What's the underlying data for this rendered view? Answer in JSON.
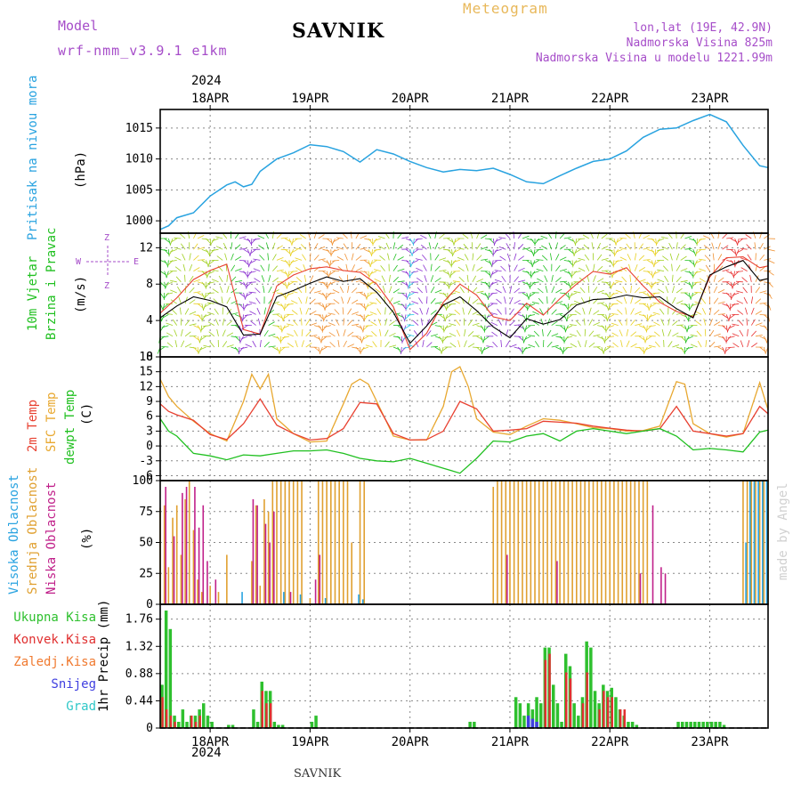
{
  "header": {
    "model_label": "Model",
    "model_name": "wrf-nmm_v3.9.1 e1km",
    "station": "SAVNIK",
    "meteogram_label": "Meteogram",
    "lonlat": "lon,lat (19E, 42.9N)",
    "elevation": "Nadmorska Visina 825m",
    "model_elevation": "Nadmorska Visina u modelu 1221.99m",
    "footer_station": "SAVNIK",
    "watermark": "made by Angel"
  },
  "time_axis": {
    "top_year": "2024",
    "bottom_year": "2024",
    "day_labels": [
      "18APR",
      "19APR",
      "20APR",
      "21APR",
      "22APR",
      "23APR"
    ],
    "day_start_hours": [
      12,
      36,
      60,
      84,
      108,
      132
    ],
    "hours_total": 146
  },
  "colors": {
    "pressure": "#29a3e0",
    "temp2m": "#e84030",
    "sfc": "#e8a830",
    "dewpt": "#20c020",
    "wind_black": "#000000",
    "wind_gust": "#e84030",
    "cloud_high": "#29a3e0",
    "cloud_mid": "#e0a030",
    "cloud_low": "#c0208a",
    "precip_total": "#2ec02e",
    "precip_conv": "#e03030",
    "precip_strat": "#f07a30",
    "snow": "#4040e0",
    "hail": "#30c8c8"
  },
  "chart_data": [
    {
      "type": "line",
      "panel": "pressure",
      "ylabel": [
        "Pritisak na nivou mora",
        "(hPa)"
      ],
      "ylim": [
        998,
        1018
      ],
      "yticks": [
        1000,
        1005,
        1010,
        1015
      ],
      "series": [
        {
          "name": "Pritisak na nivou mora",
          "x": [
            0,
            2,
            4,
            8,
            12,
            16,
            18,
            20,
            22,
            24,
            28,
            32,
            36,
            40,
            44,
            48,
            52,
            56,
            60,
            64,
            68,
            72,
            76,
            80,
            84,
            88,
            92,
            96,
            100,
            104,
            108,
            112,
            116,
            120,
            124,
            128,
            132,
            136,
            140,
            144,
            146
          ],
          "values": [
            998.6,
            999.2,
            1000.5,
            1001.3,
            1004.0,
            1005.8,
            1006.3,
            1005.5,
            1005.9,
            1008.0,
            1010.0,
            1011.0,
            1012.3,
            1012.0,
            1011.2,
            1009.5,
            1011.5,
            1010.8,
            1009.6,
            1008.6,
            1007.9,
            1008.3,
            1008.1,
            1008.5,
            1007.5,
            1006.3,
            1006.0,
            1007.3,
            1008.5,
            1009.6,
            1010.0,
            1011.3,
            1013.5,
            1014.8,
            1015.0,
            1016.2,
            1017.2,
            1016.0,
            1012.2,
            1008.9,
            1008.6
          ]
        }
      ]
    },
    {
      "type": "line",
      "panel": "wind",
      "ylabel": [
        "10m Vjetar",
        "Brzina i Pravac",
        "(m/s)"
      ],
      "compass": {
        "n": "Z",
        "w": "W",
        "e": "E",
        "s": "Z"
      },
      "ylim": [
        0,
        13.6
      ],
      "yticks": [
        0,
        4,
        8,
        12
      ],
      "series": [
        {
          "name": "Brzina",
          "x": [
            0,
            4,
            8,
            12,
            16,
            20,
            24,
            28,
            32,
            36,
            40,
            44,
            48,
            52,
            56,
            60,
            64,
            68,
            72,
            76,
            80,
            84,
            88,
            92,
            96,
            100,
            104,
            108,
            112,
            116,
            120,
            124,
            128,
            132,
            136,
            140,
            144,
            146
          ],
          "values": [
            4.3,
            5.6,
            6.6,
            6.2,
            5.5,
            2.4,
            2.5,
            6.6,
            7.3,
            8.1,
            8.8,
            8.3,
            8.6,
            7.1,
            4.9,
            1.5,
            3.4,
            5.7,
            6.6,
            5.1,
            3.3,
            2.1,
            4.2,
            3.6,
            4.1,
            5.7,
            6.3,
            6.4,
            6.8,
            6.5,
            6.6,
            5.3,
            4.3,
            9.0,
            9.9,
            10.6,
            8.4,
            8.6
          ]
        },
        {
          "name": "Udari",
          "x": [
            0,
            4,
            8,
            12,
            16,
            20,
            24,
            28,
            32,
            36,
            40,
            44,
            48,
            52,
            56,
            60,
            64,
            68,
            72,
            76,
            80,
            84,
            88,
            92,
            96,
            100,
            104,
            108,
            112,
            116,
            120,
            124,
            128,
            132,
            136,
            140,
            144,
            146
          ],
          "values": [
            4.8,
            6.5,
            8.5,
            9.5,
            10.2,
            3.0,
            2.5,
            7.8,
            9.0,
            9.7,
            9.9,
            9.5,
            9.3,
            8.0,
            5.5,
            0.8,
            2.6,
            6.0,
            8.0,
            6.8,
            4.4,
            4.0,
            5.9,
            4.6,
            6.4,
            8.0,
            9.4,
            9.1,
            9.8,
            7.8,
            6.0,
            5.0,
            4.4,
            8.8,
            10.9,
            11.0,
            9.8,
            10.0
          ]
        }
      ]
    },
    {
      "type": "line",
      "panel": "temperature",
      "ylabel": [
        "2m Temp",
        "SFC Temp",
        "dewpt Temp",
        "(C)"
      ],
      "ylim": [
        -7,
        18
      ],
      "yticks": [
        -6,
        -3,
        0,
        3,
        6,
        9,
        12,
        15,
        18
      ],
      "series": [
        {
          "name": "2m Temp",
          "x": [
            0,
            2,
            4,
            8,
            12,
            16,
            20,
            24,
            28,
            32,
            36,
            40,
            44,
            48,
            52,
            56,
            60,
            64,
            68,
            72,
            76,
            80,
            84,
            88,
            92,
            96,
            100,
            104,
            108,
            112,
            116,
            120,
            124,
            128,
            132,
            136,
            140,
            144,
            146
          ],
          "values": [
            8.5,
            7.0,
            6.3,
            5.2,
            2.3,
            1.3,
            4.5,
            9.5,
            4.2,
            2.5,
            1.2,
            1.5,
            3.5,
            8.8,
            8.5,
            2.5,
            1.2,
            1.3,
            3.0,
            9.0,
            7.5,
            3.0,
            3.2,
            3.5,
            5.0,
            4.8,
            4.6,
            4.0,
            3.6,
            3.2,
            3.0,
            3.5,
            8.0,
            3.0,
            2.5,
            2.0,
            2.5,
            8.0,
            6.5
          ]
        },
        {
          "name": "SFC Temp",
          "x": [
            0,
            2,
            4,
            8,
            12,
            16,
            20,
            22,
            24,
            26,
            28,
            32,
            36,
            40,
            44,
            46,
            48,
            50,
            52,
            56,
            60,
            64,
            68,
            70,
            72,
            74,
            76,
            80,
            84,
            88,
            92,
            96,
            100,
            104,
            108,
            112,
            116,
            120,
            124,
            126,
            128,
            132,
            136,
            140,
            144,
            146
          ],
          "values": [
            13.5,
            10.0,
            8.0,
            5.0,
            2.5,
            1.0,
            9.0,
            14.5,
            11.5,
            14.5,
            5.5,
            2.5,
            0.8,
            1.0,
            8.5,
            12.5,
            13.5,
            12.5,
            9.0,
            2.0,
            1.2,
            1.2,
            8.0,
            15.0,
            16.0,
            12.0,
            5.5,
            2.8,
            2.3,
            4.0,
            5.5,
            5.2,
            4.5,
            3.7,
            3.5,
            3.0,
            3.1,
            4.0,
            13.0,
            12.5,
            4.5,
            2.5,
            1.8,
            2.5,
            12.8,
            7.3
          ]
        },
        {
          "name": "dewpt Temp",
          "x": [
            0,
            2,
            4,
            8,
            12,
            16,
            20,
            24,
            28,
            32,
            36,
            40,
            44,
            48,
            52,
            56,
            60,
            64,
            68,
            72,
            76,
            80,
            84,
            88,
            92,
            96,
            100,
            104,
            108,
            112,
            116,
            120,
            124,
            128,
            132,
            136,
            140,
            144,
            146
          ],
          "values": [
            5.5,
            3.0,
            2.0,
            -1.5,
            -2.0,
            -2.8,
            -1.8,
            -2.0,
            -1.5,
            -1.0,
            -1.0,
            -0.8,
            -1.5,
            -2.5,
            -3.0,
            -3.2,
            -2.5,
            -3.5,
            -4.5,
            -5.5,
            -2.5,
            1.0,
            0.8,
            2.0,
            2.5,
            1.0,
            3.0,
            3.5,
            3.0,
            2.5,
            3.0,
            3.5,
            2.0,
            -0.8,
            -0.5,
            -0.8,
            -1.2,
            2.8,
            3.2
          ]
        }
      ]
    },
    {
      "type": "bar",
      "panel": "clouds",
      "ylabel": [
        "Visoka Oblacnost",
        "Srednja Oblacnost",
        "Niska Oblacnost",
        "(%)"
      ],
      "ylim": [
        0,
        100
      ],
      "yticks": [
        0,
        25,
        50,
        75,
        100
      ],
      "series": [
        {
          "name": "Srednja Oblacnost",
          "x": [
            0,
            1,
            2,
            3,
            4,
            5,
            6,
            7,
            8,
            9,
            10,
            12,
            14,
            16,
            18,
            22,
            23,
            24,
            25,
            26,
            27,
            28,
            29,
            30,
            31,
            32,
            33,
            34,
            36,
            38,
            39,
            40,
            41,
            42,
            43,
            44,
            45,
            46,
            48,
            49,
            80,
            81,
            82,
            83,
            84,
            85,
            86,
            87,
            88,
            89,
            90,
            91,
            92,
            93,
            94,
            95,
            96,
            97,
            98,
            99,
            100,
            101,
            102,
            103,
            104,
            105,
            106,
            107,
            108,
            109,
            110,
            111,
            112,
            113,
            114,
            115,
            116,
            117,
            140,
            141,
            142,
            143,
            144,
            145,
            146
          ],
          "values": [
            78,
            80,
            30,
            70,
            80,
            40,
            85,
            100,
            60,
            20,
            10,
            15,
            10,
            40,
            0,
            35,
            80,
            15,
            85,
            75,
            100,
            100,
            100,
            100,
            100,
            100,
            100,
            100,
            5,
            100,
            100,
            100,
            100,
            100,
            100,
            100,
            100,
            50,
            100,
            100,
            95,
            100,
            100,
            100,
            100,
            100,
            100,
            100,
            100,
            100,
            100,
            100,
            100,
            100,
            100,
            100,
            100,
            100,
            100,
            100,
            100,
            100,
            100,
            100,
            100,
            100,
            100,
            100,
            100,
            100,
            100,
            100,
            100,
            100,
            100,
            100,
            100,
            100,
            100,
            100,
            100,
            100,
            100,
            100,
            100
          ]
        },
        {
          "name": "Niska Oblacnost",
          "x": [
            1,
            3,
            5,
            6,
            8,
            9,
            10,
            11,
            13,
            22,
            23,
            25,
            26,
            27,
            31,
            37,
            38,
            83,
            95,
            115,
            118,
            120,
            121
          ],
          "values": [
            95,
            55,
            90,
            95,
            95,
            62,
            80,
            35,
            20,
            85,
            80,
            65,
            50,
            75,
            10,
            20,
            40,
            40,
            35,
            25,
            80,
            30,
            25
          ]
        },
        {
          "name": "Visoka Oblacnost",
          "x": [
            20,
            30,
            34,
            40,
            48,
            49,
            141,
            142,
            143,
            144,
            145,
            146
          ],
          "values": [
            10,
            10,
            8,
            5,
            8,
            4,
            50,
            100,
            100,
            100,
            100,
            100
          ]
        }
      ]
    },
    {
      "type": "bar",
      "panel": "precip",
      "ylabel": [
        "1hr Precip (mm)"
      ],
      "legend": [
        "Ukupna Kisa",
        "Konvek.Kisa",
        "Zaledj.Kisa",
        "Snijeg",
        "Grad"
      ],
      "ylim": [
        0,
        2.0
      ],
      "yticks": [
        0,
        0.44,
        0.88,
        1.32,
        1.76
      ],
      "series": [
        {
          "name": "Ukupna Kisa",
          "x": [
            0,
            1,
            2,
            3,
            4,
            5,
            6,
            7,
            8,
            9,
            10,
            11,
            12,
            16,
            17,
            22,
            23,
            24,
            25,
            26,
            27,
            28,
            29,
            36,
            37,
            74,
            75,
            85,
            86,
            87,
            88,
            89,
            90,
            91,
            92,
            93,
            94,
            95,
            96,
            97,
            98,
            99,
            100,
            101,
            102,
            103,
            104,
            105,
            106,
            107,
            108,
            109,
            110,
            111,
            112,
            113,
            114,
            124,
            125,
            126,
            127,
            128,
            129,
            130,
            131,
            132,
            133,
            134,
            135
          ],
          "values": [
            0.7,
            1.9,
            1.6,
            0.2,
            0.1,
            0.3,
            0.1,
            0.2,
            0.2,
            0.3,
            0.4,
            0.2,
            0.1,
            0.05,
            0.05,
            0.3,
            0.1,
            0.75,
            0.6,
            0.6,
            0.1,
            0.05,
            0.05,
            0.1,
            0.2,
            0.1,
            0.1,
            0.5,
            0.4,
            0.2,
            0.4,
            0.3,
            0.5,
            0.4,
            1.3,
            1.3,
            0.7,
            0.4,
            0.1,
            1.2,
            1.0,
            0.4,
            0.2,
            0.5,
            1.4,
            1.3,
            0.6,
            0.4,
            0.7,
            0.6,
            0.65,
            0.5,
            0.3,
            0.2,
            0.1,
            0.1,
            0.05,
            0.1,
            0.1,
            0.1,
            0.1,
            0.1,
            0.1,
            0.1,
            0.1,
            0.1,
            0.1,
            0.1,
            0.05
          ]
        },
        {
          "name": "Konvek.Kisa",
          "x": [
            0,
            1,
            2,
            3,
            7,
            8,
            9,
            24,
            25,
            26,
            92,
            93,
            97,
            98,
            101,
            102,
            105,
            106,
            107,
            108,
            110,
            111
          ],
          "values": [
            0.5,
            0.3,
            0.2,
            0.1,
            0.2,
            0.1,
            0.2,
            0.6,
            0.4,
            0.4,
            1.1,
            1.2,
            0.9,
            0.8,
            0.4,
            0.9,
            0.3,
            0.6,
            0.5,
            0.5,
            0.3,
            0.3
          ]
        },
        {
          "name": "Snijeg",
          "x": [
            88,
            89,
            90
          ],
          "values": [
            0.2,
            0.15,
            0.1
          ]
        }
      ]
    }
  ]
}
